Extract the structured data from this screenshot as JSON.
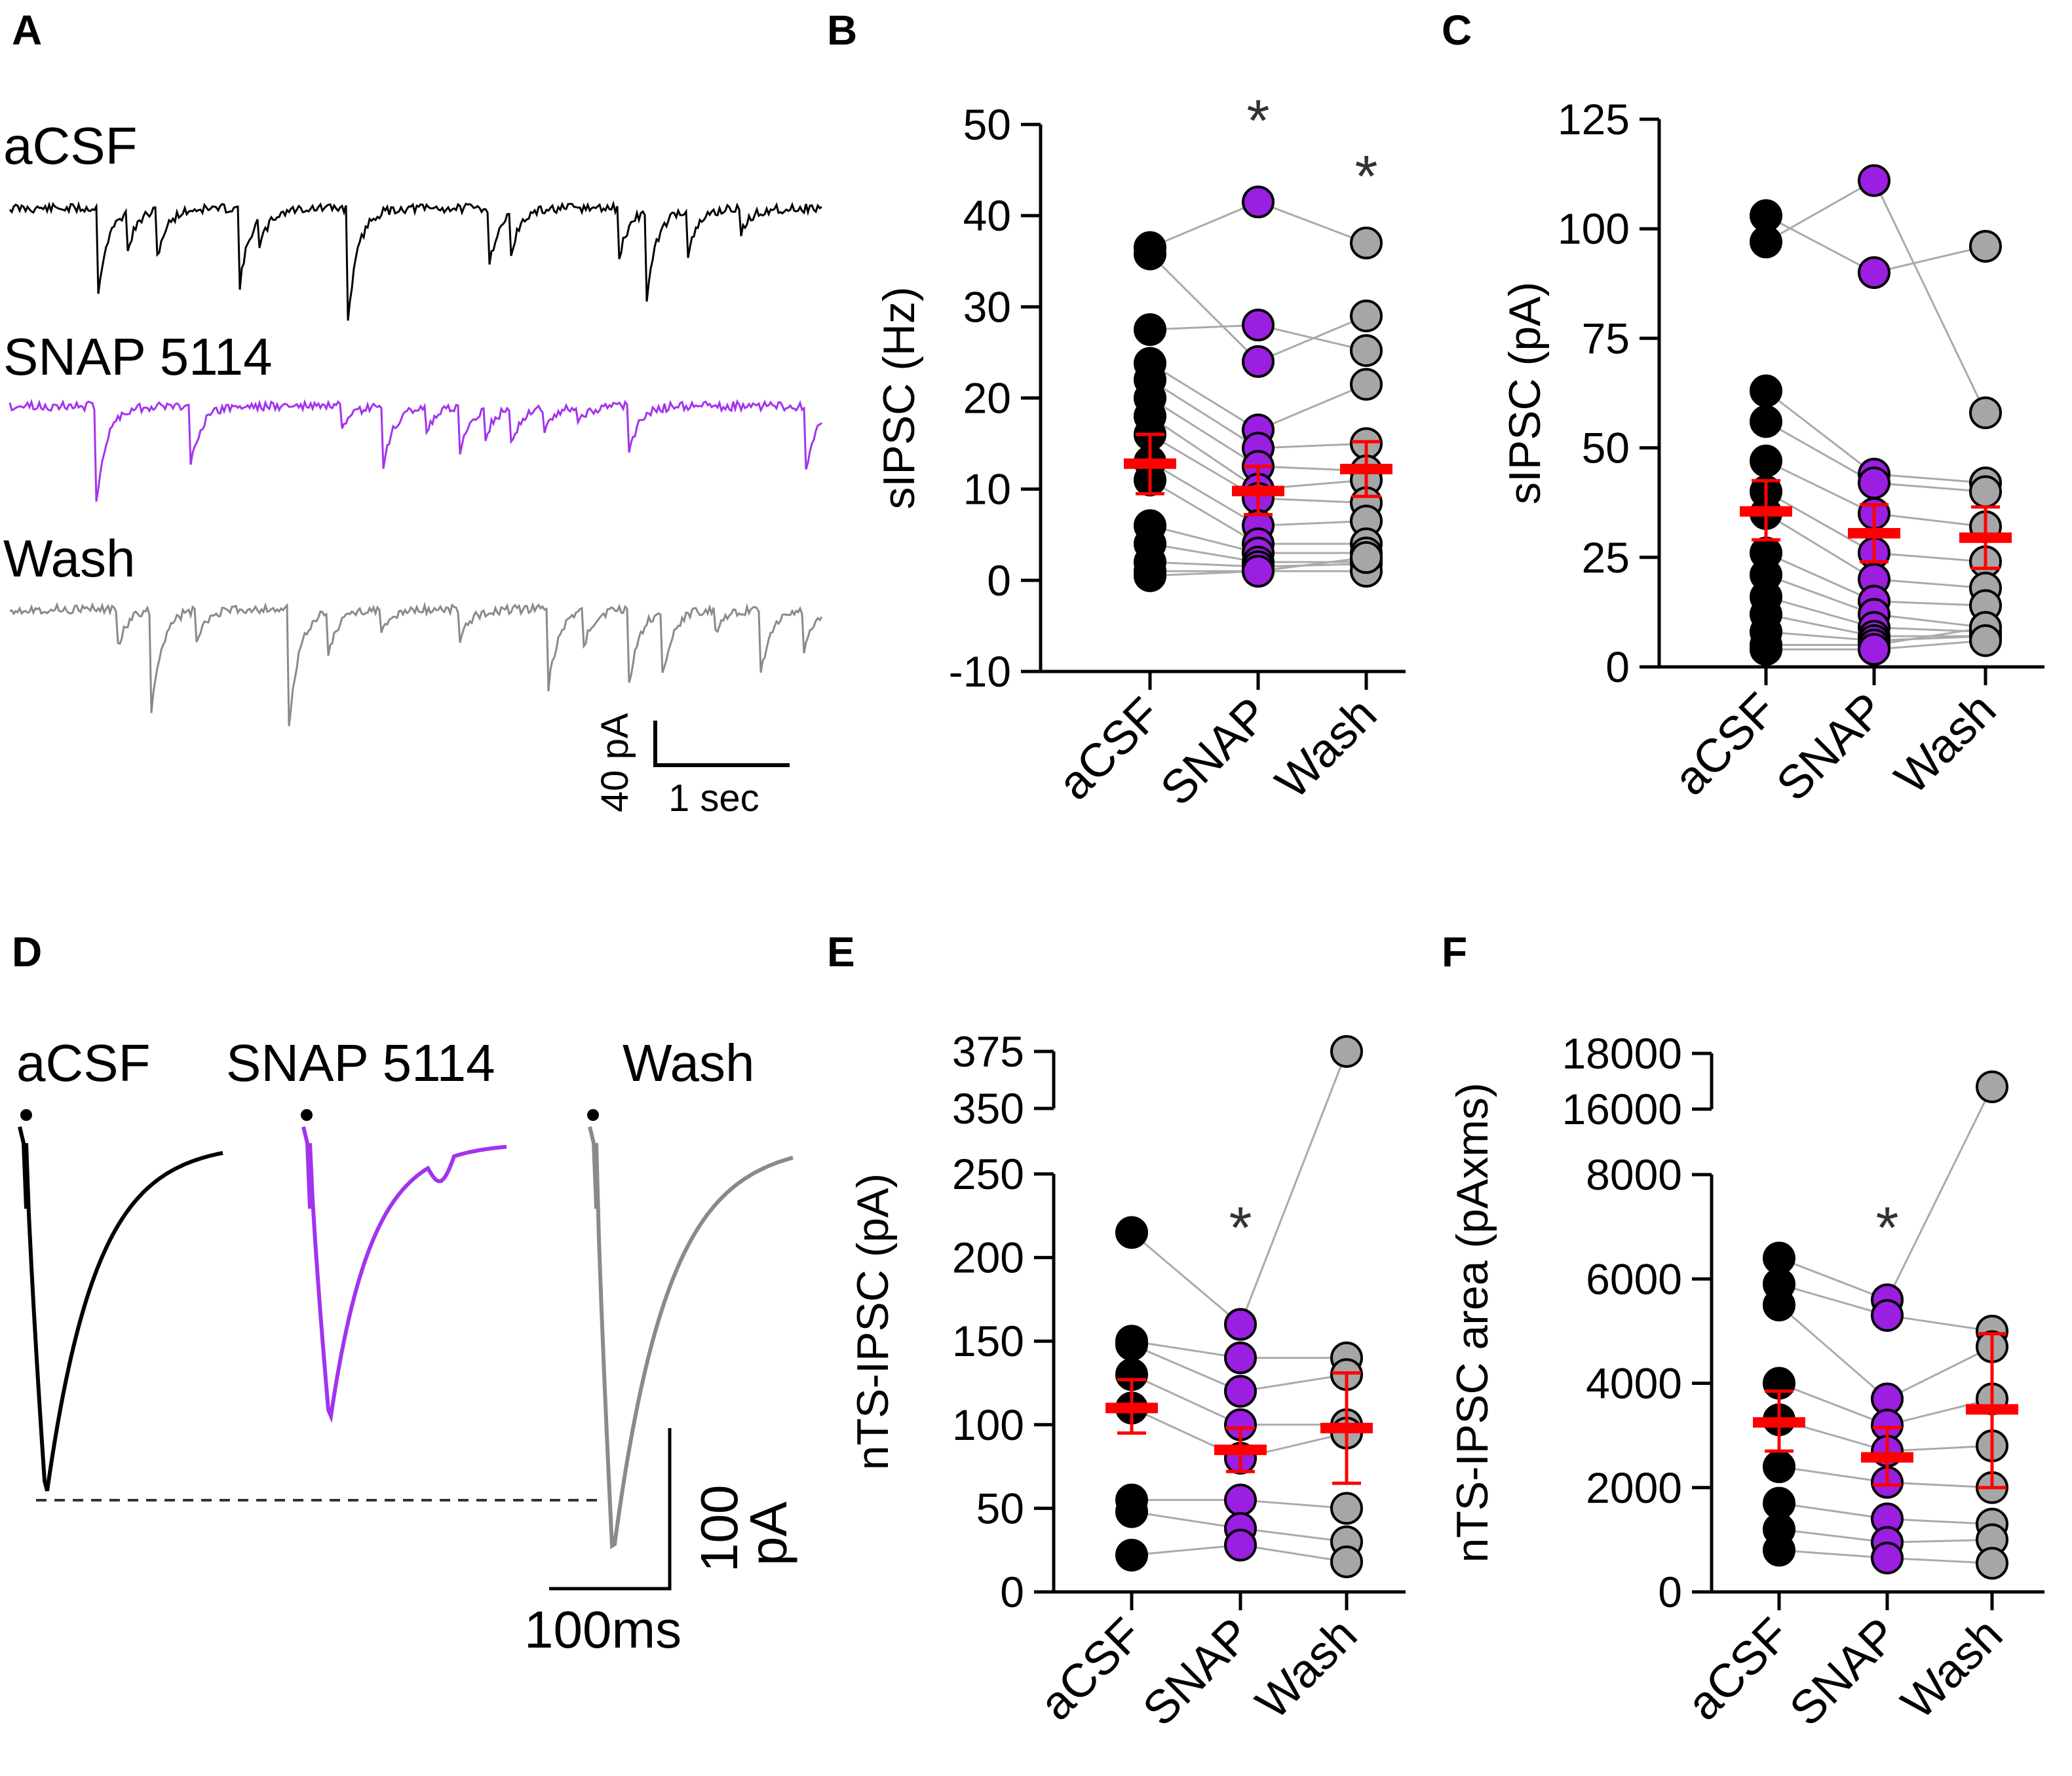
{
  "panel_letters": {
    "A": "A",
    "B": "B",
    "C": "C",
    "D": "D",
    "E": "E",
    "F": "F"
  },
  "colors": {
    "aCSF": "#000000",
    "SNAP": "#9b1fe0",
    "Wash": "#a6a6a6",
    "trace_SNAP": "#a233ee",
    "trace_Wash": "#8a8a8a",
    "mean": "#ff0000"
  },
  "panel_A": {
    "traces": [
      "aCSF",
      "SNAP 5114",
      "Wash"
    ],
    "scale_y": "40 pA",
    "scale_x": "1 sec"
  },
  "panel_D": {
    "traces": [
      "aCSF",
      "SNAP 5114",
      "Wash"
    ],
    "scale_y_value": "100",
    "scale_y_unit": "pA",
    "scale_x": "100ms"
  },
  "chart_data": [
    {
      "id": "B",
      "type": "scatter",
      "ylabel": "sIPSC (Hz)",
      "categories": [
        "aCSF",
        "SNAP",
        "Wash"
      ],
      "ylim": [
        -10,
        50
      ],
      "yticks": [
        -10,
        0,
        10,
        20,
        30,
        40,
        50
      ],
      "significance": [
        "",
        "*",
        "*"
      ],
      "pairs": [
        [
          36.5,
          41.5,
          37.0
        ],
        [
          35.8,
          24.0,
          29.0
        ],
        [
          27.5,
          28.0,
          25.2
        ],
        [
          23.8,
          16.5,
          21.5
        ],
        [
          22.0,
          14.5,
          15.0
        ],
        [
          20.0,
          12.5,
          12.0
        ],
        [
          18.0,
          10.0,
          11.0
        ],
        [
          16.0,
          9.0,
          8.5
        ],
        [
          13.0,
          6.0,
          6.5
        ],
        [
          11.0,
          4.0,
          4.0
        ],
        [
          6.0,
          3.0,
          3.0
        ],
        [
          4.0,
          2.0,
          2.0
        ],
        [
          2.0,
          1.5,
          1.8
        ],
        [
          1.0,
          1.0,
          1.0
        ],
        [
          0.5,
          1.0,
          2.5
        ]
      ],
      "mean": [
        12.8,
        9.8,
        12.2
      ],
      "sem_low": [
        9.5,
        7.2,
        9.2
      ],
      "sem_high": [
        16.0,
        12.5,
        15.2
      ]
    },
    {
      "id": "C",
      "type": "scatter",
      "ylabel": "sIPSC (pA)",
      "categories": [
        "aCSF",
        "SNAP",
        "Wash"
      ],
      "ylim": [
        0,
        125
      ],
      "yticks": [
        0,
        25,
        50,
        75,
        100,
        125
      ],
      "significance": [
        "",
        "",
        ""
      ],
      "pairs": [
        [
          103,
          90,
          96
        ],
        [
          97,
          111,
          58
        ],
        [
          63,
          44,
          42
        ],
        [
          56,
          42,
          40
        ],
        [
          47,
          35,
          32
        ],
        [
          40,
          26,
          24
        ],
        [
          35,
          20,
          18
        ],
        [
          26,
          15,
          14
        ],
        [
          21,
          12,
          9
        ],
        [
          16,
          9,
          8
        ],
        [
          12,
          7,
          7
        ],
        [
          8,
          6,
          7
        ],
        [
          5,
          5,
          9
        ],
        [
          4,
          4,
          6
        ]
      ],
      "mean": [
        35.5,
        30.5,
        29.5
      ],
      "sem_low": [
        29.0,
        24.0,
        22.5
      ],
      "sem_high": [
        42.5,
        37.0,
        36.5
      ]
    },
    {
      "id": "E",
      "type": "scatter",
      "ylabel": "nTS-IPSC (pA)",
      "categories": [
        "aCSF",
        "SNAP",
        "Wash"
      ],
      "yticks_lower": [
        0,
        50,
        100,
        150,
        200,
        250
      ],
      "yticks_upper": [
        350,
        375
      ],
      "significance": [
        "",
        "*",
        ""
      ],
      "pairs": [
        [
          215,
          160,
          375
        ],
        [
          150,
          140,
          140
        ],
        [
          148,
          120,
          130
        ],
        [
          130,
          100,
          100
        ],
        [
          110,
          80,
          95
        ],
        [
          55,
          55,
          50
        ],
        [
          48,
          38,
          30
        ],
        [
          22,
          28,
          18
        ]
      ],
      "mean": [
        110,
        85,
        98
      ],
      "sem_low": [
        95,
        72,
        65
      ],
      "sem_high": [
        127,
        98,
        131
      ]
    },
    {
      "id": "F",
      "type": "scatter",
      "ylabel": "nTS-IPSC area (pAxms)",
      "categories": [
        "aCSF",
        "SNAP",
        "Wash"
      ],
      "yticks_lower": [
        0,
        2000,
        4000,
        6000,
        8000
      ],
      "yticks_upper": [
        16000,
        18000
      ],
      "significance": [
        "",
        "*",
        ""
      ],
      "pairs": [
        [
          6400,
          5600,
          16800
        ],
        [
          5900,
          5300,
          5000
        ],
        [
          5500,
          3700,
          4700
        ],
        [
          4000,
          3200,
          3700
        ],
        [
          3300,
          2700,
          2800
        ],
        [
          2400,
          2100,
          2000
        ],
        [
          1700,
          1400,
          1300
        ],
        [
          1200,
          950,
          1000
        ],
        [
          800,
          650,
          550
        ]
      ],
      "mean": [
        3250,
        2580,
        3500
      ],
      "sem_low": [
        2700,
        2050,
        2000
      ],
      "sem_high": [
        3850,
        3150,
        4950
      ]
    }
  ]
}
